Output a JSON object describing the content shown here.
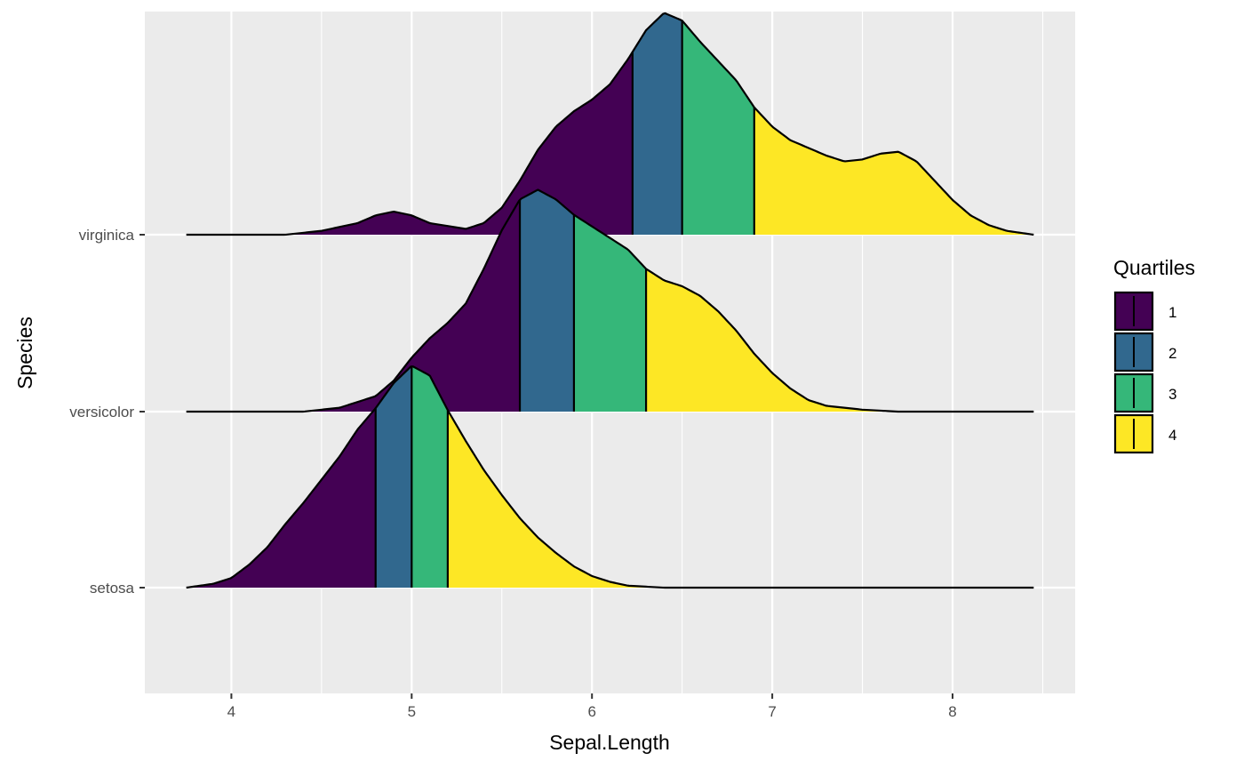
{
  "chart_data": {
    "type": "ridgeline",
    "xlabel": "Sepal.Length",
    "ylabel": "Species",
    "xlim": [
      3.52,
      8.68
    ],
    "x_ticks": [
      4,
      5,
      6,
      7,
      8
    ],
    "categories": [
      "setosa",
      "versicolor",
      "virginica"
    ],
    "series": [
      {
        "name": "setosa",
        "quartiles": [
          4.8,
          5.0,
          5.2
        ],
        "density": [
          [
            3.75,
            0
          ],
          [
            3.9,
            0.02
          ],
          [
            4.0,
            0.05
          ],
          [
            4.1,
            0.12
          ],
          [
            4.2,
            0.21
          ],
          [
            4.3,
            0.33
          ],
          [
            4.4,
            0.44
          ],
          [
            4.5,
            0.56
          ],
          [
            4.6,
            0.68
          ],
          [
            4.7,
            0.82
          ],
          [
            4.8,
            0.93
          ],
          [
            4.9,
            1.06
          ],
          [
            5.0,
            1.15
          ],
          [
            5.1,
            1.1
          ],
          [
            5.2,
            0.92
          ],
          [
            5.3,
            0.76
          ],
          [
            5.4,
            0.61
          ],
          [
            5.5,
            0.48
          ],
          [
            5.6,
            0.36
          ],
          [
            5.7,
            0.26
          ],
          [
            5.8,
            0.18
          ],
          [
            5.9,
            0.11
          ],
          [
            6.0,
            0.06
          ],
          [
            6.1,
            0.03
          ],
          [
            6.2,
            0.01
          ],
          [
            6.4,
            0
          ],
          [
            8.45,
            0
          ]
        ]
      },
      {
        "name": "versicolor",
        "quartiles": [
          5.6,
          5.9,
          6.3
        ],
        "density": [
          [
            3.75,
            0
          ],
          [
            4.4,
            0
          ],
          [
            4.6,
            0.02
          ],
          [
            4.8,
            0.08
          ],
          [
            4.9,
            0.16
          ],
          [
            5.0,
            0.28
          ],
          [
            5.1,
            0.38
          ],
          [
            5.2,
            0.46
          ],
          [
            5.3,
            0.56
          ],
          [
            5.4,
            0.74
          ],
          [
            5.5,
            0.94
          ],
          [
            5.6,
            1.1
          ],
          [
            5.7,
            1.15
          ],
          [
            5.8,
            1.1
          ],
          [
            5.9,
            1.02
          ],
          [
            6.0,
            0.96
          ],
          [
            6.1,
            0.9
          ],
          [
            6.2,
            0.84
          ],
          [
            6.3,
            0.74
          ],
          [
            6.4,
            0.68
          ],
          [
            6.5,
            0.65
          ],
          [
            6.6,
            0.6
          ],
          [
            6.7,
            0.52
          ],
          [
            6.8,
            0.42
          ],
          [
            6.9,
            0.3
          ],
          [
            7.0,
            0.2
          ],
          [
            7.1,
            0.12
          ],
          [
            7.2,
            0.06
          ],
          [
            7.3,
            0.03
          ],
          [
            7.5,
            0.01
          ],
          [
            7.7,
            0
          ],
          [
            8.45,
            0
          ]
        ]
      },
      {
        "name": "virginica",
        "quartiles": [
          6.225,
          6.5,
          6.9
        ],
        "density": [
          [
            3.75,
            0
          ],
          [
            4.3,
            0
          ],
          [
            4.5,
            0.02
          ],
          [
            4.7,
            0.06
          ],
          [
            4.8,
            0.1
          ],
          [
            4.9,
            0.12
          ],
          [
            5.0,
            0.1
          ],
          [
            5.1,
            0.06
          ],
          [
            5.3,
            0.03
          ],
          [
            5.4,
            0.06
          ],
          [
            5.5,
            0.14
          ],
          [
            5.6,
            0.28
          ],
          [
            5.7,
            0.44
          ],
          [
            5.8,
            0.56
          ],
          [
            5.9,
            0.64
          ],
          [
            6.0,
            0.7
          ],
          [
            6.1,
            0.78
          ],
          [
            6.2,
            0.91
          ],
          [
            6.3,
            1.06
          ],
          [
            6.4,
            1.15
          ],
          [
            6.5,
            1.11
          ],
          [
            6.6,
            1.0
          ],
          [
            6.7,
            0.9
          ],
          [
            6.8,
            0.8
          ],
          [
            6.9,
            0.66
          ],
          [
            7.0,
            0.56
          ],
          [
            7.1,
            0.49
          ],
          [
            7.2,
            0.45
          ],
          [
            7.3,
            0.41
          ],
          [
            7.4,
            0.38
          ],
          [
            7.5,
            0.39
          ],
          [
            7.6,
            0.42
          ],
          [
            7.7,
            0.43
          ],
          [
            7.8,
            0.38
          ],
          [
            7.9,
            0.28
          ],
          [
            8.0,
            0.18
          ],
          [
            8.1,
            0.1
          ],
          [
            8.2,
            0.05
          ],
          [
            8.3,
            0.02
          ],
          [
            8.45,
            0
          ]
        ]
      }
    ],
    "legend": {
      "title": "Quartiles",
      "position": "right",
      "items": [
        {
          "label": "1",
          "color": "#440154"
        },
        {
          "label": "2",
          "color": "#31688E"
        },
        {
          "label": "3",
          "color": "#35B779"
        },
        {
          "label": "4",
          "color": "#FDE725"
        }
      ]
    },
    "panel_background": "#EBEBEB",
    "grid": true
  }
}
